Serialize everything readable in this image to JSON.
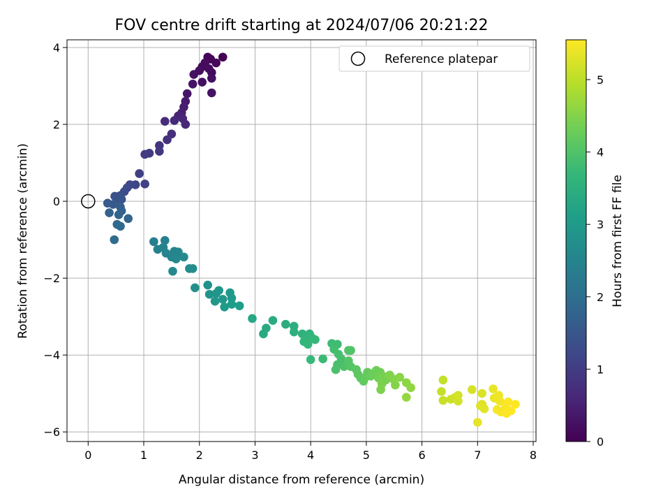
{
  "chart_data": {
    "type": "scatter",
    "title": "FOV centre drift starting at 2024/07/06 20:21:22",
    "xlabel": "Angular distance from reference (arcmin)",
    "ylabel": "Rotation from reference (arcmin)",
    "xlim": [
      -0.38,
      8.05
    ],
    "ylim": [
      -6.25,
      4.2
    ],
    "xticks": [
      "0",
      "1",
      "2",
      "3",
      "4",
      "5",
      "6",
      "7",
      "8"
    ],
    "yticks": [
      "−6",
      "−4",
      "−2",
      "0",
      "2",
      "4"
    ],
    "grid": true,
    "legend": {
      "position": "top-right",
      "entries": [
        {
          "label": "Reference platepar",
          "marker": "open-circle",
          "x": 0,
          "y": 0
        }
      ]
    },
    "colorbar": {
      "label": "Hours from first FF file",
      "range": [
        0,
        5.55
      ],
      "ticks": [
        "0",
        "1",
        "2",
        "3",
        "4",
        "5"
      ],
      "colormap": [
        "#440154",
        "#482878",
        "#3e4989",
        "#31688e",
        "#26828e",
        "#1f9e89",
        "#35b779",
        "#6ece58",
        "#b5de2b",
        "#fde725"
      ]
    },
    "series": [
      {
        "points": [
          [
            2.42,
            3.75,
            0.0
          ],
          [
            2.2,
            3.7,
            0.05
          ],
          [
            2.15,
            3.75,
            0.08
          ],
          [
            2.3,
            3.6,
            0.1
          ],
          [
            2.22,
            3.35,
            0.12
          ],
          [
            2.05,
            3.5,
            0.14
          ],
          [
            2.1,
            3.6,
            0.16
          ],
          [
            2.17,
            3.45,
            0.18
          ],
          [
            2.0,
            3.4,
            0.2
          ],
          [
            2.22,
            3.2,
            0.22
          ],
          [
            2.05,
            3.1,
            0.24
          ],
          [
            1.9,
            3.3,
            0.26
          ],
          [
            2.22,
            2.82,
            0.28
          ],
          [
            1.88,
            3.05,
            0.3
          ],
          [
            1.78,
            2.8,
            0.32
          ],
          [
            1.75,
            2.6,
            0.4
          ],
          [
            1.72,
            2.45,
            0.45
          ],
          [
            1.68,
            2.3,
            0.5
          ],
          [
            1.62,
            2.22,
            0.55
          ],
          [
            1.7,
            2.15,
            0.6
          ],
          [
            1.75,
            2.0,
            0.62
          ],
          [
            1.55,
            2.1,
            0.65
          ],
          [
            1.38,
            2.08,
            0.7
          ],
          [
            1.5,
            1.75,
            0.75
          ],
          [
            1.42,
            1.6,
            0.8
          ],
          [
            1.28,
            1.45,
            0.85
          ],
          [
            1.28,
            1.3,
            0.9
          ],
          [
            1.1,
            1.25,
            0.95
          ],
          [
            1.02,
            1.22,
            1.0
          ],
          [
            0.92,
            0.72,
            1.05
          ],
          [
            1.02,
            0.45,
            1.1
          ],
          [
            0.85,
            0.43,
            1.15
          ],
          [
            0.75,
            0.43,
            1.2
          ],
          [
            0.7,
            0.35,
            1.25
          ],
          [
            0.65,
            0.25,
            1.3
          ],
          [
            0.58,
            0.15,
            1.35
          ],
          [
            0.48,
            0.13,
            1.4
          ],
          [
            0.6,
            0.05,
            1.45
          ],
          [
            0.55,
            -0.05,
            1.5
          ],
          [
            0.45,
            -0.08,
            1.55
          ],
          [
            0.35,
            -0.05,
            1.6
          ],
          [
            0.58,
            -0.15,
            1.65
          ],
          [
            0.6,
            -0.25,
            1.7
          ],
          [
            0.38,
            -0.3,
            1.75
          ],
          [
            0.55,
            -0.35,
            1.78
          ],
          [
            0.72,
            -0.45,
            1.8
          ],
          [
            0.52,
            -0.6,
            1.85
          ],
          [
            0.58,
            -0.65,
            1.9
          ],
          [
            0.47,
            -1.0,
            1.95
          ],
          [
            1.18,
            -1.05,
            2.4
          ],
          [
            1.38,
            -1.02,
            2.42
          ],
          [
            1.25,
            -1.25,
            2.45
          ],
          [
            1.35,
            -1.2,
            2.48
          ],
          [
            1.4,
            -1.35,
            2.5
          ],
          [
            1.55,
            -1.3,
            2.52
          ],
          [
            1.62,
            -1.32,
            2.55
          ],
          [
            1.5,
            -1.45,
            2.58
          ],
          [
            1.58,
            -1.5,
            2.6
          ],
          [
            1.72,
            -1.45,
            2.62
          ],
          [
            1.52,
            -1.82,
            2.65
          ],
          [
            1.82,
            -1.75,
            2.68
          ],
          [
            1.88,
            -1.75,
            2.7
          ],
          [
            1.92,
            -2.25,
            2.75
          ],
          [
            2.15,
            -2.18,
            2.8
          ],
          [
            2.18,
            -2.42,
            2.85
          ],
          [
            2.3,
            -2.4,
            2.88
          ],
          [
            2.35,
            -2.32,
            2.9
          ],
          [
            2.28,
            -2.6,
            2.92
          ],
          [
            2.42,
            -2.55,
            2.95
          ],
          [
            2.55,
            -2.38,
            2.98
          ],
          [
            2.58,
            -2.52,
            3.0
          ],
          [
            2.45,
            -2.75,
            3.02
          ],
          [
            2.58,
            -2.68,
            3.05
          ],
          [
            2.72,
            -2.72,
            3.08
          ],
          [
            2.95,
            -3.05,
            3.3
          ],
          [
            3.2,
            -3.3,
            3.35
          ],
          [
            3.15,
            -3.45,
            3.38
          ],
          [
            3.32,
            -3.1,
            3.4
          ],
          [
            3.55,
            -3.2,
            3.45
          ],
          [
            3.7,
            -3.25,
            3.48
          ],
          [
            3.7,
            -3.4,
            3.5
          ],
          [
            3.85,
            -3.45,
            3.55
          ],
          [
            3.92,
            -3.5,
            3.58
          ],
          [
            3.98,
            -3.45,
            3.6
          ],
          [
            4.02,
            -3.55,
            3.62
          ],
          [
            3.88,
            -3.65,
            3.65
          ],
          [
            3.95,
            -3.72,
            3.68
          ],
          [
            4.08,
            -3.6,
            3.7
          ],
          [
            4.0,
            -4.12,
            3.72
          ],
          [
            4.22,
            -4.1,
            3.75
          ],
          [
            4.38,
            -3.7,
            3.8
          ],
          [
            4.48,
            -3.72,
            3.82
          ],
          [
            4.42,
            -3.85,
            3.85
          ],
          [
            4.5,
            -3.98,
            3.88
          ],
          [
            4.55,
            -4.1,
            3.9
          ],
          [
            4.48,
            -4.25,
            3.92
          ],
          [
            4.45,
            -4.38,
            3.95
          ],
          [
            4.6,
            -4.3,
            3.98
          ],
          [
            4.68,
            -3.88,
            4.0
          ],
          [
            4.72,
            -3.88,
            4.02
          ],
          [
            4.68,
            -4.15,
            4.05
          ],
          [
            4.72,
            -4.3,
            4.08
          ],
          [
            4.82,
            -4.38,
            4.1
          ],
          [
            4.85,
            -4.5,
            4.12
          ],
          [
            4.9,
            -4.6,
            4.15
          ],
          [
            4.95,
            -4.68,
            4.18
          ],
          [
            4.98,
            -4.58,
            4.2
          ],
          [
            5.02,
            -4.45,
            4.22
          ],
          [
            5.08,
            -4.55,
            4.25
          ],
          [
            5.12,
            -4.48,
            4.28
          ],
          [
            5.18,
            -4.4,
            4.3
          ],
          [
            5.25,
            -4.45,
            4.32
          ],
          [
            5.22,
            -4.6,
            4.35
          ],
          [
            5.3,
            -4.55,
            4.38
          ],
          [
            5.35,
            -4.65,
            4.4
          ],
          [
            5.28,
            -4.75,
            4.42
          ],
          [
            5.26,
            -4.9,
            4.45
          ],
          [
            5.42,
            -4.52,
            4.48
          ],
          [
            5.48,
            -4.62,
            4.5
          ],
          [
            5.52,
            -4.78,
            4.52
          ],
          [
            5.6,
            -4.58,
            4.55
          ],
          [
            5.72,
            -4.72,
            4.58
          ],
          [
            5.8,
            -4.85,
            4.62
          ],
          [
            5.72,
            -5.1,
            4.65
          ],
          [
            6.38,
            -4.65,
            5.05
          ],
          [
            6.35,
            -4.95,
            5.08
          ],
          [
            6.38,
            -5.18,
            5.1
          ],
          [
            6.52,
            -5.15,
            5.12
          ],
          [
            6.6,
            -5.1,
            5.15
          ],
          [
            6.65,
            -5.2,
            5.18
          ],
          [
            6.65,
            -5.05,
            5.2
          ],
          [
            6.9,
            -4.9,
            5.22
          ],
          [
            7.08,
            -5.0,
            5.25
          ],
          [
            7.05,
            -5.32,
            5.28
          ],
          [
            7.08,
            -5.28,
            5.3
          ],
          [
            7.12,
            -5.4,
            5.32
          ],
          [
            7.0,
            -5.75,
            5.35
          ],
          [
            7.28,
            -4.88,
            5.38
          ],
          [
            7.3,
            -5.12,
            5.4
          ],
          [
            7.38,
            -5.05,
            5.42
          ],
          [
            7.4,
            -5.2,
            5.45
          ],
          [
            7.35,
            -5.42,
            5.48
          ],
          [
            7.42,
            -5.48,
            5.5
          ],
          [
            7.5,
            -5.32,
            5.52
          ],
          [
            7.55,
            -5.22,
            5.53
          ],
          [
            7.52,
            -5.52,
            5.54
          ],
          [
            7.6,
            -5.45,
            5.55
          ],
          [
            7.68,
            -5.28,
            5.55
          ]
        ]
      }
    ]
  }
}
